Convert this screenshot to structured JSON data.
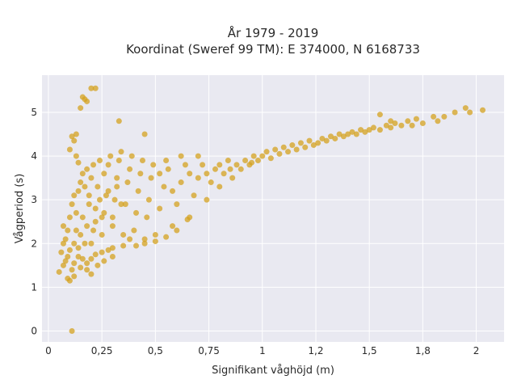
{
  "chart_data": {
    "type": "scatter",
    "title_line1": "År 1979 - 2019",
    "title_line2": "Koordinat (Sweref 99 TM): E 374000, N 6168733",
    "xlabel": "Signifikant våghöjd (m)",
    "ylabel": "Vågperiod (s)",
    "xlim": [
      -0.03,
      2.13
    ],
    "ylim": [
      -0.25,
      5.85
    ],
    "x_ticks": [
      {
        "value": 0,
        "label": "0"
      },
      {
        "value": 0.25,
        "label": "0,25"
      },
      {
        "value": 0.5,
        "label": "0,5"
      },
      {
        "value": 0.75,
        "label": "0,75"
      },
      {
        "value": 1.0,
        "label": "1"
      },
      {
        "value": 1.25,
        "label": "1,2"
      },
      {
        "value": 1.5,
        "label": "1,5"
      },
      {
        "value": 1.75,
        "label": "1,8"
      },
      {
        "value": 2.0,
        "label": "2"
      }
    ],
    "y_ticks": [
      {
        "value": 0,
        "label": "0"
      },
      {
        "value": 1,
        "label": "1"
      },
      {
        "value": 2,
        "label": "2"
      },
      {
        "value": 3,
        "label": "3"
      },
      {
        "value": 4,
        "label": "4"
      },
      {
        "value": 5,
        "label": "5"
      }
    ],
    "grid": true,
    "point_color": "#D4A21F",
    "plot_background": "#E9E9F1",
    "grid_color": "#FFFFFF",
    "series": [
      {
        "points": [
          [
            0.11,
            0.0
          ],
          [
            0.05,
            1.35
          ],
          [
            0.07,
            1.5
          ],
          [
            0.08,
            1.6
          ],
          [
            0.09,
            1.2
          ],
          [
            0.1,
            1.15
          ],
          [
            0.12,
            1.25
          ],
          [
            0.1,
            1.85
          ],
          [
            0.08,
            2.1
          ],
          [
            0.07,
            2.4
          ],
          [
            0.12,
            1.55
          ],
          [
            0.14,
            1.7
          ],
          [
            0.15,
            1.45
          ],
          [
            0.16,
            1.65
          ],
          [
            0.18,
            1.55
          ],
          [
            0.2,
            1.65
          ],
          [
            0.22,
            1.75
          ],
          [
            0.25,
            1.8
          ],
          [
            0.28,
            1.85
          ],
          [
            0.3,
            1.9
          ],
          [
            0.1,
            2.6
          ],
          [
            0.11,
            2.9
          ],
          [
            0.12,
            3.1
          ],
          [
            0.13,
            2.7
          ],
          [
            0.14,
            3.2
          ],
          [
            0.15,
            3.4
          ],
          [
            0.16,
            3.6
          ],
          [
            0.17,
            3.3
          ],
          [
            0.18,
            3.7
          ],
          [
            0.19,
            3.1
          ],
          [
            0.2,
            3.5
          ],
          [
            0.21,
            3.8
          ],
          [
            0.22,
            2.8
          ],
          [
            0.23,
            3.3
          ],
          [
            0.24,
            3.9
          ],
          [
            0.25,
            2.6
          ],
          [
            0.26,
            3.6
          ],
          [
            0.27,
            3.1
          ],
          [
            0.28,
            3.8
          ],
          [
            0.29,
            4.0
          ],
          [
            0.3,
            2.4
          ],
          [
            0.31,
            3.0
          ],
          [
            0.32,
            3.5
          ],
          [
            0.33,
            3.9
          ],
          [
            0.34,
            4.1
          ],
          [
            0.35,
            2.2
          ],
          [
            0.36,
            2.9
          ],
          [
            0.37,
            3.4
          ],
          [
            0.38,
            3.7
          ],
          [
            0.39,
            4.0
          ],
          [
            0.4,
            2.3
          ],
          [
            0.41,
            2.7
          ],
          [
            0.42,
            3.2
          ],
          [
            0.43,
            3.6
          ],
          [
            0.44,
            3.9
          ],
          [
            0.45,
            2.1
          ],
          [
            0.46,
            2.6
          ],
          [
            0.47,
            3.0
          ],
          [
            0.48,
            3.5
          ],
          [
            0.49,
            3.8
          ],
          [
            0.5,
            2.2
          ],
          [
            0.52,
            2.8
          ],
          [
            0.54,
            3.3
          ],
          [
            0.56,
            3.7
          ],
          [
            0.58,
            2.4
          ],
          [
            0.6,
            2.9
          ],
          [
            0.62,
            3.4
          ],
          [
            0.64,
            3.8
          ],
          [
            0.66,
            2.6
          ],
          [
            0.68,
            3.1
          ],
          [
            0.7,
            3.5
          ],
          [
            0.72,
            3.8
          ],
          [
            0.74,
            3.0
          ],
          [
            0.76,
            3.4
          ],
          [
            0.78,
            3.7
          ],
          [
            0.8,
            3.3
          ],
          [
            0.82,
            3.6
          ],
          [
            0.84,
            3.9
          ],
          [
            0.86,
            3.5
          ],
          [
            0.88,
            3.8
          ],
          [
            0.9,
            3.7
          ],
          [
            0.92,
            3.9
          ],
          [
            0.94,
            3.8
          ],
          [
            0.96,
            4.0
          ],
          [
            0.98,
            3.9
          ],
          [
            1.0,
            4.0
          ],
          [
            1.02,
            4.1
          ],
          [
            1.04,
            3.95
          ],
          [
            1.06,
            4.15
          ],
          [
            1.08,
            4.05
          ],
          [
            1.1,
            4.2
          ],
          [
            1.12,
            4.1
          ],
          [
            1.14,
            4.25
          ],
          [
            1.16,
            4.15
          ],
          [
            1.18,
            4.3
          ],
          [
            1.2,
            4.2
          ],
          [
            1.22,
            4.35
          ],
          [
            1.24,
            4.25
          ],
          [
            1.26,
            4.3
          ],
          [
            1.28,
            4.4
          ],
          [
            1.3,
            4.35
          ],
          [
            1.32,
            4.45
          ],
          [
            1.34,
            4.4
          ],
          [
            1.36,
            4.5
          ],
          [
            1.38,
            4.45
          ],
          [
            1.4,
            4.5
          ],
          [
            1.42,
            4.55
          ],
          [
            1.44,
            4.5
          ],
          [
            1.46,
            4.6
          ],
          [
            1.48,
            4.55
          ],
          [
            1.5,
            4.6
          ],
          [
            1.52,
            4.65
          ],
          [
            1.55,
            4.6
          ],
          [
            1.58,
            4.7
          ],
          [
            1.6,
            4.65
          ],
          [
            1.62,
            4.75
          ],
          [
            1.65,
            4.7
          ],
          [
            1.68,
            4.8
          ],
          [
            1.7,
            4.7
          ],
          [
            1.72,
            4.85
          ],
          [
            1.75,
            4.75
          ],
          [
            1.8,
            4.9
          ],
          [
            1.82,
            4.8
          ],
          [
            1.85,
            4.9
          ],
          [
            1.9,
            5.0
          ],
          [
            1.95,
            5.1
          ],
          [
            1.97,
            5.0
          ],
          [
            2.03,
            5.05
          ],
          [
            1.55,
            4.95
          ],
          [
            1.6,
            4.8
          ],
          [
            0.15,
            5.1
          ],
          [
            0.16,
            5.35
          ],
          [
            0.17,
            5.3
          ],
          [
            0.2,
            5.55
          ],
          [
            0.22,
            5.55
          ],
          [
            0.18,
            5.25
          ],
          [
            0.13,
            4.5
          ],
          [
            0.12,
            4.35
          ],
          [
            0.1,
            4.15
          ],
          [
            0.11,
            4.45
          ],
          [
            0.33,
            4.8
          ],
          [
            0.45,
            4.5
          ],
          [
            0.14,
            3.85
          ],
          [
            0.13,
            4.0
          ],
          [
            0.41,
            1.95
          ],
          [
            0.45,
            2.0
          ],
          [
            0.5,
            2.05
          ],
          [
            0.55,
            2.15
          ],
          [
            0.6,
            2.3
          ],
          [
            0.65,
            2.55
          ],
          [
            0.2,
            2.0
          ],
          [
            0.25,
            2.2
          ],
          [
            0.18,
            2.4
          ],
          [
            0.22,
            2.5
          ],
          [
            0.26,
            2.7
          ],
          [
            0.3,
            2.6
          ],
          [
            0.34,
            2.9
          ],
          [
            0.28,
            3.2
          ],
          [
            0.32,
            3.3
          ],
          [
            0.24,
            3.0
          ],
          [
            0.15,
            2.2
          ],
          [
            0.13,
            2.3
          ],
          [
            0.16,
            2.6
          ],
          [
            0.19,
            2.9
          ],
          [
            0.21,
            2.3
          ],
          [
            0.17,
            2.0
          ],
          [
            0.14,
            1.9
          ],
          [
            0.12,
            2.0
          ],
          [
            0.09,
            1.7
          ],
          [
            0.11,
            1.4
          ],
          [
            0.2,
            1.3
          ],
          [
            0.18,
            1.4
          ],
          [
            0.23,
            1.5
          ],
          [
            0.26,
            1.6
          ],
          [
            0.06,
            1.8
          ],
          [
            0.07,
            2.0
          ],
          [
            0.09,
            2.3
          ],
          [
            0.3,
            1.7
          ],
          [
            0.35,
            1.95
          ],
          [
            0.38,
            2.1
          ],
          [
            0.55,
            3.9
          ],
          [
            0.62,
            4.0
          ],
          [
            0.7,
            4.0
          ],
          [
            0.52,
            3.6
          ],
          [
            0.58,
            3.2
          ],
          [
            0.66,
            3.6
          ],
          [
            0.74,
            3.6
          ],
          [
            0.8,
            3.8
          ],
          [
            0.85,
            3.7
          ],
          [
            0.95,
            3.85
          ]
        ]
      }
    ]
  }
}
